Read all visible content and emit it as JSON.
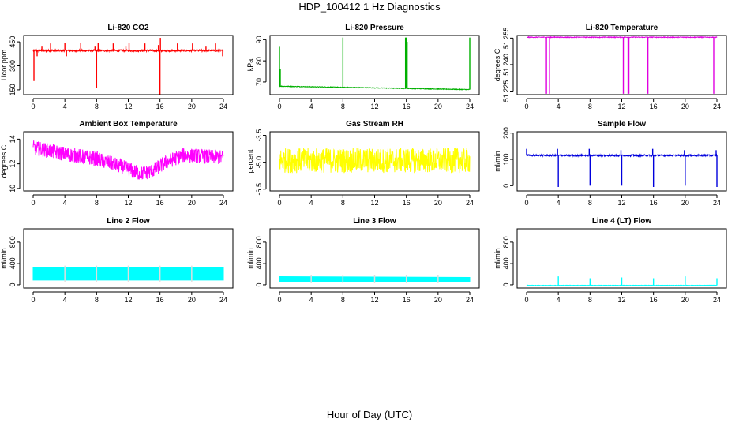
{
  "figure": {
    "title": "HDP_100412  1 Hz Diagnostics",
    "xlabel": "Hour of Day (UTC)"
  },
  "chart_data": [
    {
      "type": "line",
      "title": "Li-820 CO2",
      "ylabel": "Licor ppm",
      "color": "#ff0000",
      "xlim": [
        0,
        24
      ],
      "ylim": [
        120,
        490
      ],
      "x_ticks": [
        0,
        4,
        8,
        12,
        16,
        20,
        24
      ],
      "y_ticks": [
        150,
        300,
        450
      ],
      "baseline": 395,
      "noise": 6,
      "drift": [],
      "spikes": [
        {
          "x": 0.1,
          "y": 205
        },
        {
          "x": 0.5,
          "y": 360
        },
        {
          "x": 1.1,
          "y": 425
        },
        {
          "x": 2.2,
          "y": 440
        },
        {
          "x": 4.0,
          "y": 442
        },
        {
          "x": 4.2,
          "y": 360
        },
        {
          "x": 6.0,
          "y": 443
        },
        {
          "x": 7.8,
          "y": 425
        },
        {
          "x": 8.0,
          "y": 160
        },
        {
          "x": 8.2,
          "y": 445
        },
        {
          "x": 10.1,
          "y": 440
        },
        {
          "x": 11.7,
          "y": 425
        },
        {
          "x": 12.1,
          "y": 442
        },
        {
          "x": 14.1,
          "y": 440
        },
        {
          "x": 15.8,
          "y": 430
        },
        {
          "x": 16.0,
          "y": 120
        },
        {
          "x": 16.05,
          "y": 475
        },
        {
          "x": 18.2,
          "y": 440
        },
        {
          "x": 20.1,
          "y": 440
        },
        {
          "x": 21.8,
          "y": 425
        },
        {
          "x": 23.0,
          "y": 440
        },
        {
          "x": 23.9,
          "y": 360
        }
      ]
    },
    {
      "type": "line",
      "title": "Li-820 Pressure",
      "ylabel": "kPa",
      "color": "#00b000",
      "xlim": [
        0,
        24
      ],
      "ylim": [
        64,
        92
      ],
      "x_ticks": [
        0,
        4,
        8,
        12,
        16,
        20,
        24
      ],
      "y_ticks": [
        70,
        80,
        90
      ],
      "baseline": 67.3,
      "noise": 0.15,
      "drift": [
        [
          0,
          68.0
        ],
        [
          24,
          66.4
        ]
      ],
      "spikes": [
        {
          "x": 0.0,
          "y": 87
        },
        {
          "x": 0.1,
          "y": 76
        },
        {
          "x": 8.0,
          "y": 91
        },
        {
          "x": 15.9,
          "y": 91
        },
        {
          "x": 16.0,
          "y": 91
        },
        {
          "x": 16.1,
          "y": 89
        },
        {
          "x": 24.0,
          "y": 91
        }
      ]
    },
    {
      "type": "line",
      "title": "Li-820 Temperature",
      "ylabel": "degrees C",
      "color": "#e000e0",
      "xlim": [
        0,
        24
      ],
      "ylim": [
        51.223,
        51.2565
      ],
      "x_ticks": [
        0,
        4,
        8,
        12,
        16,
        20,
        24
      ],
      "y_ticks": [
        51.225,
        51.24,
        51.255
      ],
      "y_tick_labels": [
        "51.225",
        "51.240",
        "51.255"
      ],
      "baseline": 51.2555,
      "noise": 0.0002,
      "drift": [],
      "spikes": [
        {
          "x": 2.4,
          "y": 51.2235
        },
        {
          "x": 2.5,
          "y": 51.2235
        },
        {
          "x": 2.9,
          "y": 51.2235
        },
        {
          "x": 12.2,
          "y": 51.2235
        },
        {
          "x": 12.8,
          "y": 51.2235
        },
        {
          "x": 12.9,
          "y": 51.2235
        },
        {
          "x": 15.3,
          "y": 51.2235
        },
        {
          "x": 23.6,
          "y": 51.2235
        }
      ]
    },
    {
      "type": "line",
      "title": "Ambient Box Temperature",
      "ylabel": "degrees C",
      "color": "#ff00ff",
      "xlim": [
        0,
        24
      ],
      "ylim": [
        9.8,
        14.6
      ],
      "x_ticks": [
        0,
        4,
        8,
        12,
        16,
        20,
        24
      ],
      "y_ticks": [
        10,
        12,
        14
      ],
      "baseline": 12.5,
      "noise": 0.6,
      "drift": [
        [
          0,
          13.3
        ],
        [
          4,
          12.8
        ],
        [
          8,
          12.4
        ],
        [
          11,
          11.8
        ],
        [
          13.5,
          11.2
        ],
        [
          15,
          11.4
        ],
        [
          17,
          12.2
        ],
        [
          19,
          12.7
        ],
        [
          24,
          12.5
        ]
      ],
      "spikes": []
    },
    {
      "type": "line",
      "title": "Gas Stream RH",
      "ylabel": "percent",
      "color": "#ffff00",
      "xlim": [
        0,
        24
      ],
      "ylim": [
        -6.6,
        -3.3
      ],
      "x_ticks": [
        0,
        4,
        8,
        12,
        16,
        20,
        24
      ],
      "y_ticks": [
        -6.5,
        -5.0,
        -3.5
      ],
      "y_tick_labels": [
        "-6.5",
        "-5.0",
        "-3.5"
      ],
      "baseline": -4.9,
      "noise": 0.7,
      "drift": [],
      "spikes": []
    },
    {
      "type": "line",
      "title": "Sample Flow",
      "ylabel": "ml/min",
      "color": "#0000dd",
      "xlim": [
        0,
        24
      ],
      "ylim": [
        -20,
        205
      ],
      "x_ticks": [
        0,
        4,
        8,
        12,
        16,
        20,
        24
      ],
      "y_ticks": [
        0,
        100,
        200
      ],
      "baseline": 115,
      "noise": 3,
      "drift": [],
      "spikes": [
        {
          "x": 0.0,
          "y": 140
        },
        {
          "x": 3.9,
          "y": 140
        },
        {
          "x": 4.0,
          "y": -5
        },
        {
          "x": 7.9,
          "y": 140
        },
        {
          "x": 8.0,
          "y": 0
        },
        {
          "x": 11.9,
          "y": 135
        },
        {
          "x": 12.0,
          "y": 0
        },
        {
          "x": 15.9,
          "y": 140
        },
        {
          "x": 16.0,
          "y": -5
        },
        {
          "x": 19.9,
          "y": 135
        },
        {
          "x": 20.0,
          "y": 0
        },
        {
          "x": 23.9,
          "y": 135
        },
        {
          "x": 24.0,
          "y": -5
        }
      ]
    },
    {
      "type": "line",
      "title": "Line 2 Flow",
      "ylabel": "ml/min",
      "color": "#00ffff",
      "xlim": [
        0,
        24
      ],
      "ylim": [
        -60,
        1050
      ],
      "x_ticks": [
        0,
        4,
        8,
        12,
        16,
        20,
        24
      ],
      "y_ticks": [
        0,
        400,
        800
      ],
      "band": [
        [
          0,
          90,
          330
        ],
        [
          24,
          90,
          330
        ]
      ],
      "gaps": [
        4,
        8,
        12,
        16,
        20
      ]
    },
    {
      "type": "line",
      "title": "Line 3 Flow",
      "ylabel": "ml/min",
      "color": "#00ffff",
      "xlim": [
        0,
        24
      ],
      "ylim": [
        -60,
        1050
      ],
      "x_ticks": [
        0,
        4,
        8,
        12,
        16,
        20,
        24
      ],
      "y_ticks": [
        0,
        400,
        800
      ],
      "band": [
        [
          0,
          60,
          155
        ],
        [
          24,
          60,
          140
        ]
      ],
      "gaps": [
        4,
        8,
        12,
        16,
        20
      ]
    },
    {
      "type": "line",
      "title": "Line 4 (LT) Flow",
      "ylabel": "ml/min",
      "color": "#00ffff",
      "xlim": [
        0,
        24
      ],
      "ylim": [
        -60,
        1050
      ],
      "x_ticks": [
        0,
        4,
        8,
        12,
        16,
        20,
        24
      ],
      "y_ticks": [
        0,
        400,
        800
      ],
      "baseline": -10,
      "noise": 4,
      "drift": [],
      "spikes": [
        {
          "x": 4.0,
          "y": 160
        },
        {
          "x": 8.0,
          "y": 110
        },
        {
          "x": 12.0,
          "y": 140
        },
        {
          "x": 16.0,
          "y": 110
        },
        {
          "x": 20.0,
          "y": 160
        },
        {
          "x": 24.0,
          "y": 110
        }
      ]
    }
  ]
}
